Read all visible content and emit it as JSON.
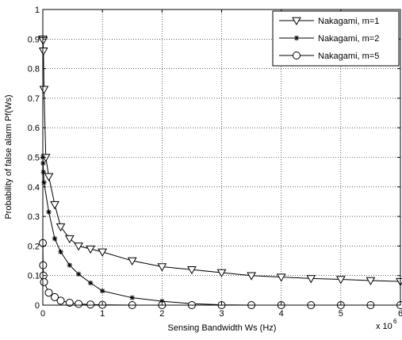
{
  "chart_data": {
    "type": "line",
    "title": "",
    "xlabel": "Sensing Bandwidth Ws (Hz)",
    "ylabel": "Probability of false alarm Pf(Ws)",
    "x_exponent_label": "x 10",
    "x_exponent_power": "6",
    "xlim": [
      0,
      6
    ],
    "ylim": [
      0,
      1
    ],
    "xticks": [
      0,
      1,
      2,
      3,
      4,
      5,
      6
    ],
    "yticks": [
      0,
      0.1,
      0.2,
      0.3,
      0.4,
      0.5,
      0.6,
      0.7,
      0.8,
      0.9,
      1
    ],
    "xtick_labels": [
      "0",
      "1",
      "2",
      "3",
      "4",
      "5",
      "6"
    ],
    "ytick_labels": [
      "0",
      "0.1",
      "0.2",
      "0.3",
      "0.4",
      "0.5",
      "0.6",
      "0.7",
      "0.8",
      "0.9",
      "1"
    ],
    "grid": true,
    "legend_position": "top-right",
    "series": [
      {
        "name": "Nakagami, m=1",
        "marker": "triangle-down",
        "color": "#000000",
        "x": [
          0,
          0.005,
          0.01,
          0.02,
          0.05,
          0.1,
          0.2,
          0.3,
          0.45,
          0.6,
          0.8,
          1.0,
          1.5,
          2.0,
          2.5,
          3.0,
          3.5,
          4.0,
          4.5,
          5.0,
          5.5,
          6.0
        ],
        "y": [
          0.9,
          0.895,
          0.86,
          0.73,
          0.5,
          0.435,
          0.34,
          0.265,
          0.225,
          0.2,
          0.19,
          0.18,
          0.15,
          0.13,
          0.12,
          0.11,
          0.1,
          0.095,
          0.09,
          0.087,
          0.083,
          0.08
        ]
      },
      {
        "name": "Nakagami, m=2",
        "marker": "star",
        "color": "#000000",
        "x": [
          0,
          0.005,
          0.01,
          0.02,
          0.1,
          0.2,
          0.3,
          0.45,
          0.6,
          0.8,
          1.0,
          1.5,
          2.0,
          2.5,
          3.0,
          3.5,
          4.0,
          4.5,
          5.0,
          5.5,
          6.0
        ],
        "y": [
          0.5,
          0.48,
          0.45,
          0.415,
          0.315,
          0.225,
          0.18,
          0.135,
          0.105,
          0.075,
          0.048,
          0.025,
          0.013,
          0.005,
          0.001,
          0,
          0,
          0,
          0,
          0,
          0
        ]
      },
      {
        "name": "Nakagami, m=5",
        "marker": "circle",
        "color": "#000000",
        "x": [
          0,
          0.005,
          0.01,
          0.02,
          0.1,
          0.2,
          0.3,
          0.45,
          0.6,
          0.8,
          1.0,
          1.5,
          2.0,
          2.5,
          3.0,
          3.5,
          4.0,
          4.5,
          5.0,
          5.5,
          6.0
        ],
        "y": [
          0.21,
          0.135,
          0.1,
          0.078,
          0.042,
          0.027,
          0.015,
          0.008,
          0.004,
          0.002,
          0.001,
          0,
          0,
          0,
          0,
          0,
          0,
          0,
          0,
          0,
          0
        ]
      }
    ]
  }
}
